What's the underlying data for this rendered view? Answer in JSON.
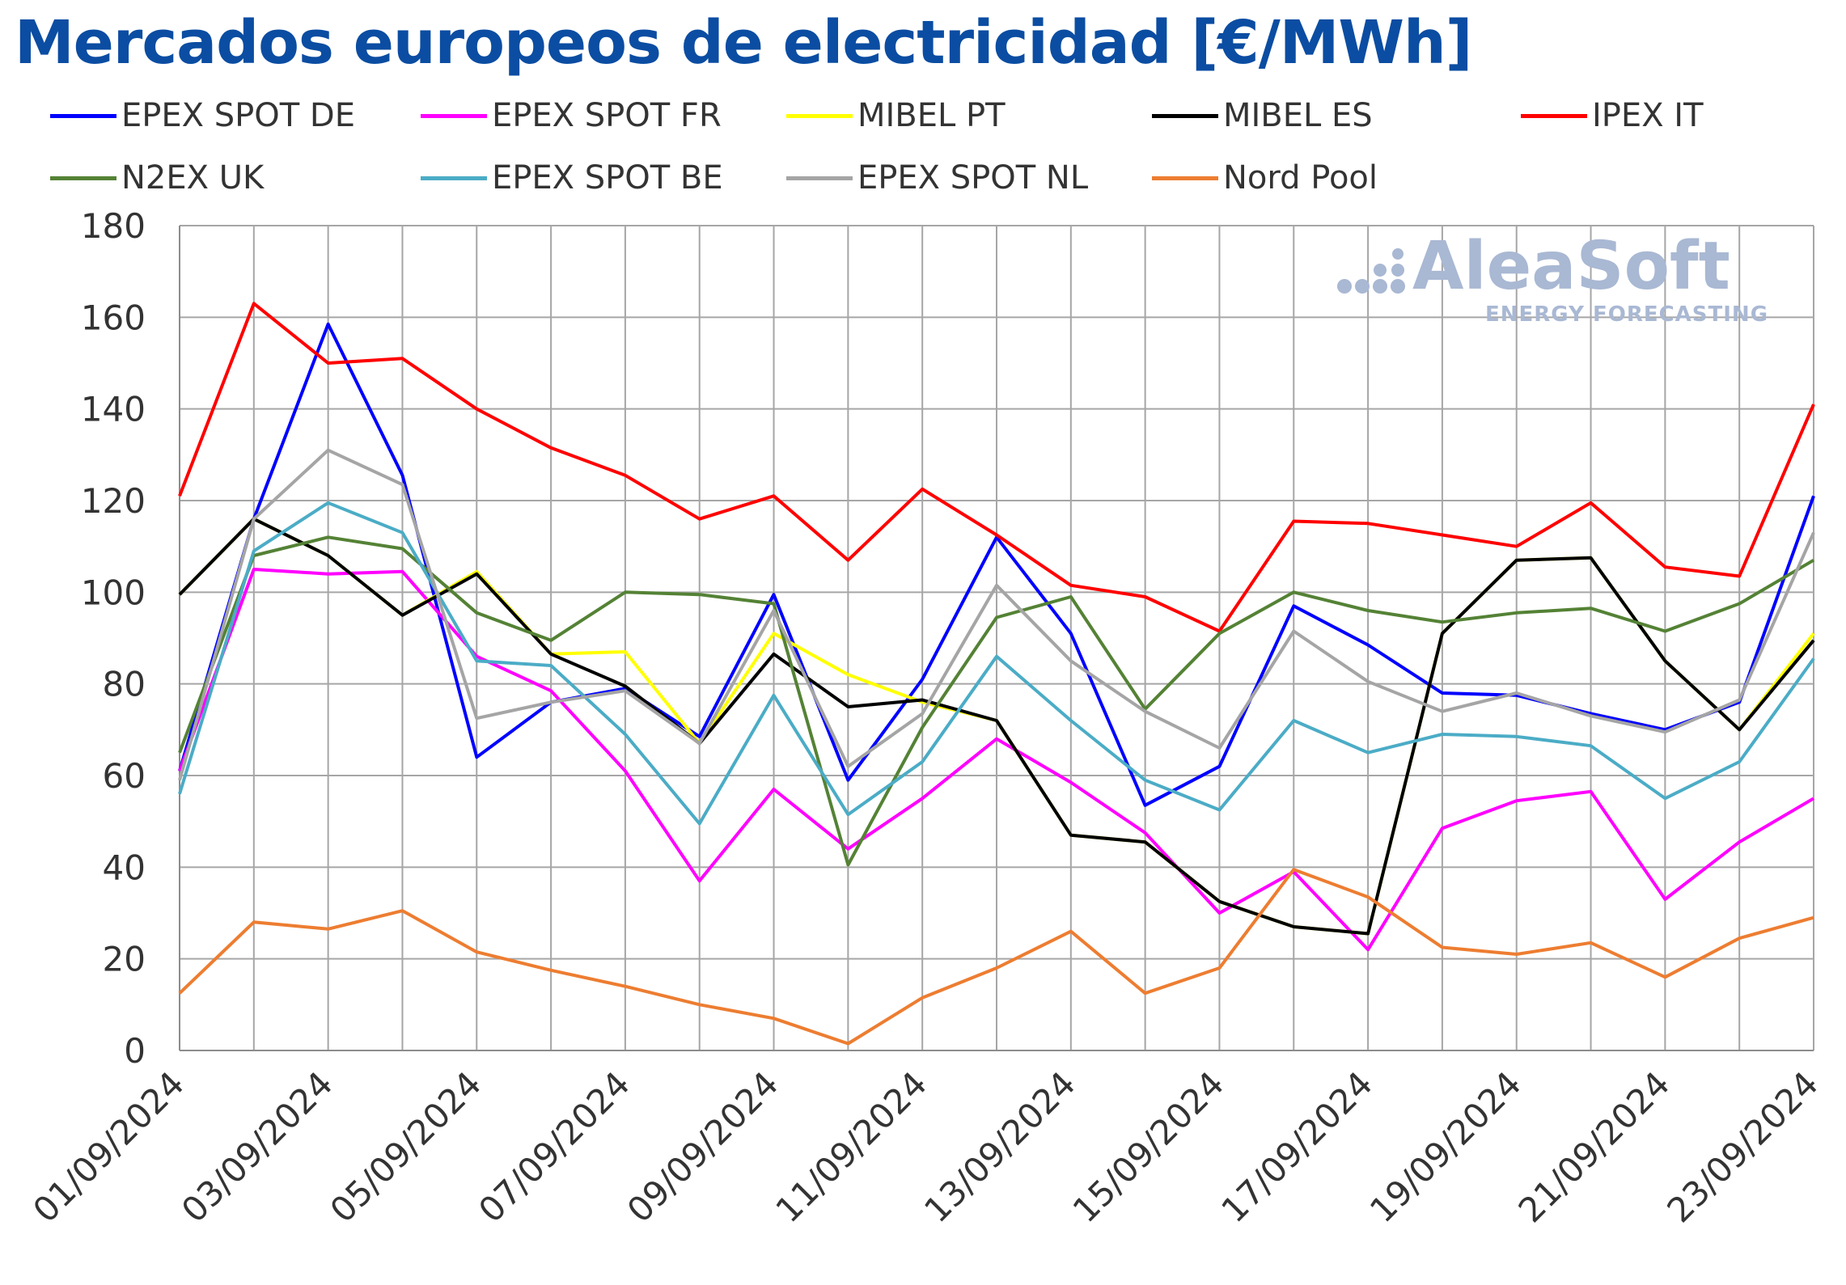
{
  "chart_data": {
    "type": "line",
    "title": "Mercados europeos de electricidad [€/MWh]",
    "xlabel": "",
    "ylabel": "",
    "ylim": [
      0,
      180
    ],
    "yticks": [
      "0",
      "20",
      "40",
      "60",
      "80",
      "100",
      "120",
      "140",
      "160",
      "180"
    ],
    "x": [
      "01/09/2024",
      "02/09/2024",
      "03/09/2024",
      "04/09/2024",
      "05/09/2024",
      "06/09/2024",
      "07/09/2024",
      "08/09/2024",
      "09/09/2024",
      "10/09/2024",
      "11/09/2024",
      "12/09/2024",
      "13/09/2024",
      "14/09/2024",
      "15/09/2024",
      "16/09/2024",
      "17/09/2024",
      "18/09/2024",
      "19/09/2024",
      "20/09/2024",
      "21/09/2024",
      "22/09/2024",
      "23/09/2024"
    ],
    "xtick_labels": [
      "01/09/2024",
      "03/09/2024",
      "05/09/2024",
      "07/09/2024",
      "09/09/2024",
      "11/09/2024",
      "13/09/2024",
      "15/09/2024",
      "17/09/2024",
      "19/09/2024",
      "21/09/2024",
      "23/09/2024"
    ],
    "grid": true,
    "legend_position": "top",
    "series": [
      {
        "name": "EPEX SPOT DE",
        "color": "#0000ff",
        "values": [
          61,
          116,
          158.5,
          125.5,
          64,
          76,
          79,
          68.5,
          99.5,
          59,
          81,
          112,
          91,
          53.5,
          62,
          97,
          88.5,
          78,
          77.5,
          73.5,
          70,
          76,
          121
        ]
      },
      {
        "name": "EPEX SPOT FR",
        "color": "#ff00ff",
        "values": [
          61,
          105,
          104,
          104.5,
          86,
          78.5,
          61,
          37,
          57,
          44,
          55,
          68,
          58.5,
          47.5,
          30,
          39,
          22,
          48.5,
          54.5,
          56.5,
          33,
          45.5,
          55
        ]
      },
      {
        "name": "MIBEL PT",
        "color": "#ffff00",
        "values": [
          99.5,
          116,
          108,
          95,
          104.5,
          86.5,
          87,
          67,
          91,
          82,
          76,
          72,
          47,
          45.5,
          32.5,
          27,
          25.5,
          91,
          107,
          107.5,
          85,
          70,
          91
        ]
      },
      {
        "name": "MIBEL ES",
        "color": "#000000",
        "values": [
          99.5,
          116,
          108,
          95,
          104,
          86.5,
          79.5,
          67,
          86.5,
          75,
          76.5,
          72,
          47,
          45.5,
          32.5,
          27,
          25.5,
          91,
          107,
          107.5,
          85,
          70,
          89.5
        ]
      },
      {
        "name": "IPEX IT",
        "color": "#ff0000",
        "values": [
          121,
          163,
          150,
          151,
          140,
          131.5,
          125.5,
          116,
          121,
          107,
          122.5,
          112.5,
          101.5,
          99,
          91.5,
          115.5,
          115,
          112.5,
          110,
          119.5,
          105.5,
          103.5,
          141
        ]
      },
      {
        "name": "N2EX UK",
        "color": "#548235",
        "values": [
          65,
          108,
          112,
          109.5,
          95.5,
          89.5,
          100,
          99.5,
          97.5,
          40.5,
          70.5,
          94.5,
          99,
          74.5,
          91,
          100,
          96,
          93.5,
          95.5,
          96.5,
          91.5,
          97.5,
          107
        ]
      },
      {
        "name": "EPEX SPOT BE",
        "color": "#4bacc6",
        "values": [
          56,
          109,
          119.5,
          113,
          85,
          84,
          69,
          49.5,
          77.5,
          51.5,
          63,
          86,
          72,
          59,
          52.5,
          72,
          65,
          69,
          68.5,
          66.5,
          55,
          63,
          85.5
        ]
      },
      {
        "name": "EPEX SPOT NL",
        "color": "#a5a5a5",
        "values": [
          59,
          116,
          131,
          123.5,
          72.5,
          76,
          78.5,
          67,
          96,
          62,
          73.5,
          101.5,
          85,
          74,
          66,
          91.5,
          80.5,
          74,
          78,
          73,
          69.5,
          76.5,
          113
        ]
      },
      {
        "name": "Nord Pool",
        "color": "#ed7d31",
        "values": [
          12.5,
          28,
          26.5,
          30.5,
          21.5,
          17.5,
          14,
          10,
          7,
          1.5,
          11.5,
          18,
          26,
          12.5,
          18,
          39.5,
          33.5,
          22.5,
          21,
          23.5,
          16,
          24.5,
          29
        ]
      }
    ]
  },
  "logo": {
    "name": "AleaSoft",
    "tagline": "ENERGY FORECASTING"
  }
}
